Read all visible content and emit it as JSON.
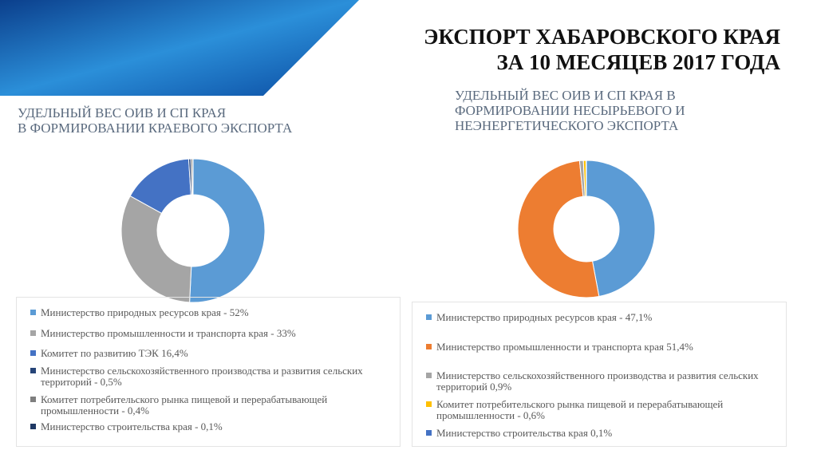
{
  "title": [
    "ЭКСПОРТ ХАБАРОВСКОГО КРАЯ",
    "ЗА 10 МЕСЯЦЕВ 2017 ГОДА"
  ],
  "chart_data": [
    {
      "type": "pie",
      "title": [
        "УДЕЛЬНЫЙ ВЕС ОИВ И СП КРАЯ",
        "В ФОРМИРОВАНИИ КРАЕВОГО ЭКСПОРТА"
      ],
      "categories": [
        "Министерство природных ресурсов края - 52%",
        "Министерство промышленности и транспорта края - 33%",
        "Комитет по развитию ТЭК 16,4%",
        "Министерство сельскохозяйственного производства и развития сельских территорий - 0,5%",
        "Комитет потребительского рынка пищевой и перерабатывающей промышленности - 0,4%",
        "Министерство строительства края - 0,1%"
      ],
      "values": [
        52,
        33,
        16.4,
        0.5,
        0.4,
        0.1
      ],
      "colors": [
        "#5b9bd5",
        "#a5a5a5",
        "#4472c4",
        "#264478",
        "#7f7f7f",
        "#1f3864"
      ]
    },
    {
      "type": "pie",
      "title": [
        "УДЕЛЬНЫЙ ВЕС ОИВ И СП КРАЯ В",
        "ФОРМИРОВАНИИ НЕСЫРЬЕВОГО И",
        "НЕЭНЕРГЕТИЧЕСКОГО ЭКСПОРТА"
      ],
      "categories": [
        "Министерство природных ресурсов края - 47,1%",
        "Министерство промышленности и транспорта края 51,4%",
        "Министерство сельскохозяйственного производства и развития сельских территорий 0,9%",
        "Комитет потребительского рынка пищевой и перерабатывающей промышленности - 0,6%",
        "Министерство строительства края 0,1%"
      ],
      "values": [
        47.1,
        51.4,
        0.9,
        0.6,
        0.1
      ],
      "colors": [
        "#5b9bd5",
        "#ed7d31",
        "#a5a5a5",
        "#ffc000",
        "#4472c4"
      ]
    }
  ]
}
